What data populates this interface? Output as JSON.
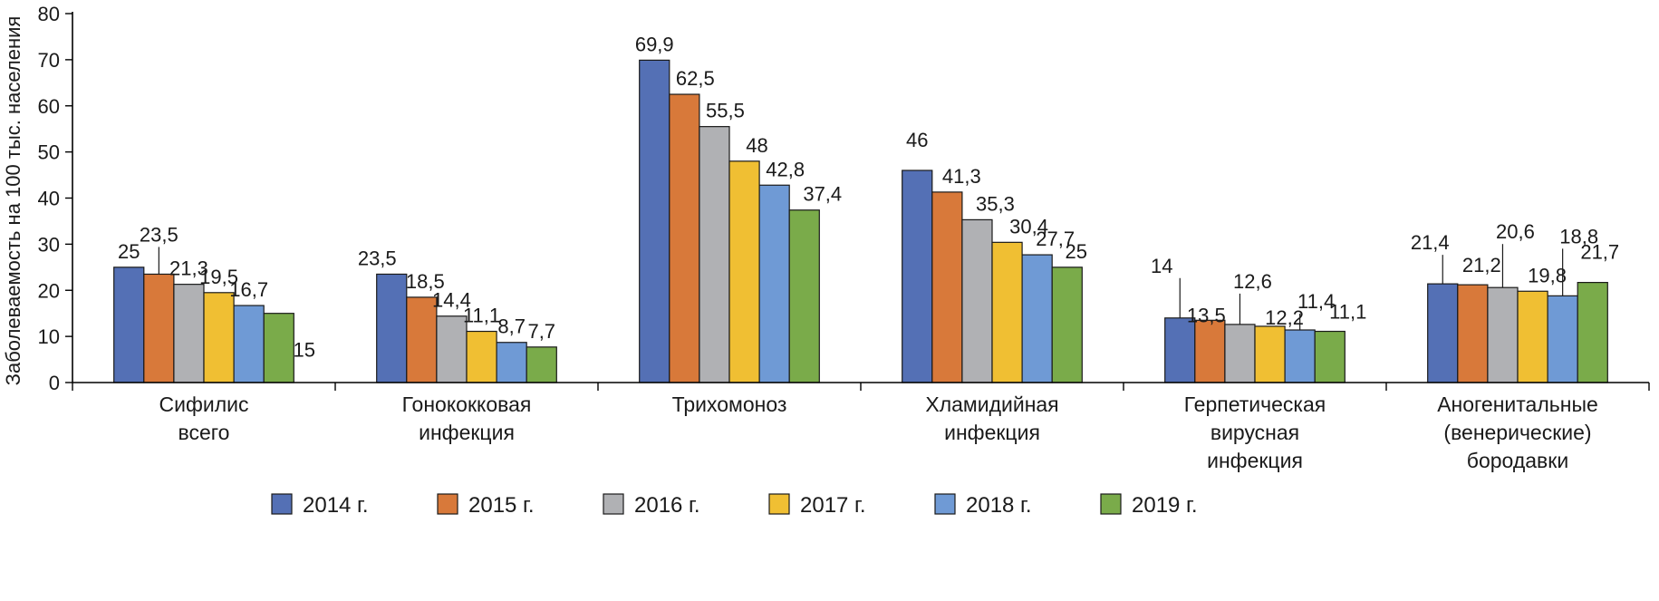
{
  "chart_data": {
    "type": "bar",
    "title": "",
    "xlabel": "",
    "ylabel": "Заболеваемость на 100 тыс. населения",
    "ylim": [
      0,
      80
    ],
    "yticks": [
      0,
      10,
      20,
      30,
      40,
      50,
      60,
      70,
      80
    ],
    "grid": false,
    "legend_position": "bottom",
    "categories": [
      [
        "Сифилис",
        "всего"
      ],
      [
        "Гонококковая",
        "инфекция"
      ],
      [
        "Трихомоноз"
      ],
      [
        "Хламидийная",
        "инфекция"
      ],
      [
        "Герпетическая",
        "вирусная",
        "инфекция"
      ],
      [
        "Аногенитальные",
        "(венерические)",
        "бородавки"
      ]
    ],
    "series": [
      {
        "name": "2014 г.",
        "color": "#5470b5",
        "values": [
          25,
          23.5,
          69.9,
          46,
          14,
          21.4
        ],
        "labels": [
          "25",
          "23,5",
          "69,9",
          "46",
          "14",
          "21,4"
        ]
      },
      {
        "name": "2015 г.",
        "color": "#d8793a",
        "values": [
          23.5,
          18.5,
          62.5,
          41.3,
          13.5,
          21.2
        ],
        "labels": [
          "23,5",
          "18,5",
          "62,5",
          "41,3",
          "13,5",
          "21,2"
        ]
      },
      {
        "name": "2016 г.",
        "color": "#b0b1b4",
        "values": [
          21.3,
          14.4,
          55.5,
          35.3,
          12.6,
          20.6
        ],
        "labels": [
          "21,3",
          "14,4",
          "55,5",
          "35,3",
          "12,6",
          "20,6"
        ]
      },
      {
        "name": "2017 г.",
        "color": "#f0bf33",
        "values": [
          19.5,
          11.1,
          48,
          30.4,
          12.2,
          19.8
        ],
        "labels": [
          "19,5",
          "11,1",
          "48",
          "30,4",
          "12,2",
          "19,8"
        ]
      },
      {
        "name": "2018 г.",
        "color": "#6f9ad5",
        "values": [
          16.7,
          8.7,
          42.8,
          27.7,
          11.4,
          18.8
        ],
        "labels": [
          "16,7",
          "8,7",
          "42,8",
          "27,7",
          "11,4",
          "18,8"
        ]
      },
      {
        "name": "2019 г.",
        "color": "#7aab4a",
        "values": [
          15,
          7.7,
          37.4,
          25,
          11.1,
          21.7
        ],
        "labels": [
          "15",
          "7,7",
          "37,4",
          "25",
          "11,1",
          "21,7"
        ]
      }
    ]
  }
}
